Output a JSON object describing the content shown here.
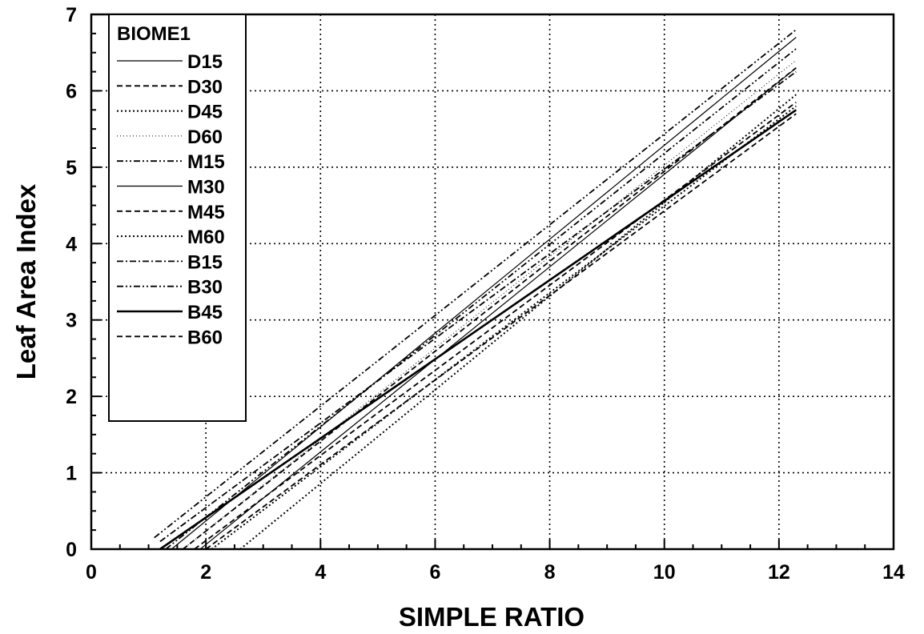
{
  "chart_data": {
    "type": "line",
    "title": "",
    "xlabel": "SIMPLE RATIO",
    "ylabel": "Leaf Area Index",
    "xlim": [
      0,
      14
    ],
    "ylim": [
      0,
      7
    ],
    "x_ticks": [
      "0",
      "2",
      "4",
      "6",
      "8",
      "10",
      "12",
      "14"
    ],
    "y_ticks": [
      "0",
      "1",
      "2",
      "3",
      "4",
      "5",
      "6",
      "7"
    ],
    "grid": true,
    "legend": {
      "title": "BIOME1",
      "position": "top-left"
    },
    "series": [
      {
        "name": "D15",
        "dash": "solid-thin",
        "x": [
          1.4,
          12.3
        ],
        "y": [
          0.0,
          6.7
        ]
      },
      {
        "name": "D30",
        "dash": "dash",
        "x": [
          1.6,
          12.3
        ],
        "y": [
          0.0,
          6.3
        ]
      },
      {
        "name": "D45",
        "dash": "dot",
        "x": [
          2.1,
          12.3
        ],
        "y": [
          0.0,
          5.8
        ]
      },
      {
        "name": "D60",
        "dash": "dot-fine",
        "x": [
          1.6,
          12.3
        ],
        "y": [
          0.0,
          6.4
        ]
      },
      {
        "name": "M15",
        "dash": "dash-dot-dot",
        "x": [
          1.1,
          12.3
        ],
        "y": [
          0.15,
          6.8
        ]
      },
      {
        "name": "M30",
        "dash": "solid-thin",
        "x": [
          1.9,
          12.3
        ],
        "y": [
          0.0,
          6.3
        ]
      },
      {
        "name": "M45",
        "dash": "dash",
        "x": [
          2.0,
          12.3
        ],
        "y": [
          0.0,
          5.7
        ]
      },
      {
        "name": "M60",
        "dash": "dot",
        "x": [
          2.6,
          12.3
        ],
        "y": [
          0.0,
          5.95
        ]
      },
      {
        "name": "B15",
        "dash": "dash-dot",
        "x": [
          1.2,
          12.3
        ],
        "y": [
          0.1,
          6.25
        ]
      },
      {
        "name": "B30",
        "dash": "dash-dot-dot",
        "x": [
          1.3,
          12.3
        ],
        "y": [
          0.0,
          6.55
        ]
      },
      {
        "name": "B45",
        "dash": "solid",
        "x": [
          1.2,
          12.3
        ],
        "y": [
          0.0,
          5.75
        ]
      },
      {
        "name": "B60",
        "dash": "dash",
        "x": [
          1.8,
          12.3
        ],
        "y": [
          0.0,
          5.85
        ]
      }
    ]
  }
}
